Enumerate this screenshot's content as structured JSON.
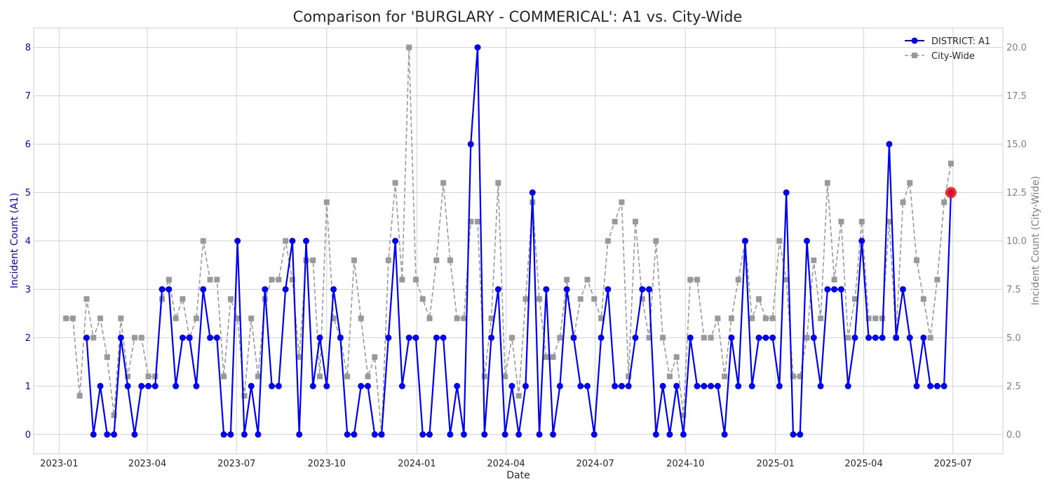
{
  "chart_data": {
    "type": "line",
    "title": "Comparison for 'BURGLARY - COMMERICAL': A1 vs. City-Wide",
    "xlabel": "Date",
    "ylabel_left": "Incident Count (A1)",
    "ylabel_right": "Incident Count (City-Wide)",
    "xlim": [
      "2022-12-06",
      "2025-08-21"
    ],
    "ylim_left": [
      -0.4,
      8.4
    ],
    "ylim_right": [
      -1.0,
      21.0
    ],
    "x_ticks": [
      "2023-01",
      "2023-04",
      "2023-07",
      "2023-10",
      "2024-01",
      "2024-04",
      "2024-07",
      "2024-10",
      "2025-01",
      "2025-04",
      "2025-07"
    ],
    "y_ticks_left": [
      "0",
      "1",
      "2",
      "3",
      "4",
      "5",
      "6",
      "7",
      "8"
    ],
    "y_ticks_right": [
      "0.0",
      "2.5",
      "5.0",
      "7.5",
      "10.0",
      "12.5",
      "15.0",
      "17.5",
      "20.0"
    ],
    "grid": true,
    "legend_position": "top-right",
    "colors": {
      "district": "#0000ee",
      "city": "#999999",
      "highlight": "#ee1111"
    },
    "x": [
      "2023-01-08",
      "2023-01-15",
      "2023-01-22",
      "2023-01-29",
      "2023-02-05",
      "2023-02-12",
      "2023-02-19",
      "2023-02-26",
      "2023-03-05",
      "2023-03-12",
      "2023-03-19",
      "2023-03-26",
      "2023-04-02",
      "2023-04-09",
      "2023-04-16",
      "2023-04-23",
      "2023-04-30",
      "2023-05-07",
      "2023-05-14",
      "2023-05-21",
      "2023-05-28",
      "2023-06-04",
      "2023-06-11",
      "2023-06-18",
      "2023-06-25",
      "2023-07-02",
      "2023-07-09",
      "2023-07-16",
      "2023-07-23",
      "2023-07-30",
      "2023-08-06",
      "2023-08-13",
      "2023-08-20",
      "2023-08-27",
      "2023-09-03",
      "2023-09-10",
      "2023-09-17",
      "2023-09-24",
      "2023-10-01",
      "2023-10-08",
      "2023-10-15",
      "2023-10-22",
      "2023-10-29",
      "2023-11-05",
      "2023-11-12",
      "2023-11-19",
      "2023-11-26",
      "2023-12-03",
      "2023-12-10",
      "2023-12-17",
      "2023-12-24",
      "2023-12-31",
      "2024-01-07",
      "2024-01-14",
      "2024-01-21",
      "2024-01-28",
      "2024-02-04",
      "2024-02-11",
      "2024-02-18",
      "2024-02-25",
      "2024-03-03",
      "2024-03-10",
      "2024-03-17",
      "2024-03-24",
      "2024-03-31",
      "2024-04-07",
      "2024-04-14",
      "2024-04-21",
      "2024-04-28",
      "2024-05-05",
      "2024-05-12",
      "2024-05-19",
      "2024-05-26",
      "2024-06-02",
      "2024-06-09",
      "2024-06-16",
      "2024-06-23",
      "2024-06-30",
      "2024-07-07",
      "2024-07-14",
      "2024-07-21",
      "2024-07-28",
      "2024-08-04",
      "2024-08-11",
      "2024-08-18",
      "2024-08-25",
      "2024-09-01",
      "2024-09-08",
      "2024-09-15",
      "2024-09-22",
      "2024-09-29",
      "2024-10-06",
      "2024-10-13",
      "2024-10-20",
      "2024-10-27",
      "2024-11-03",
      "2024-11-10",
      "2024-11-17",
      "2024-11-24",
      "2024-12-01",
      "2024-12-08",
      "2024-12-15",
      "2024-12-22",
      "2024-12-29",
      "2025-01-05",
      "2025-01-12",
      "2025-01-19",
      "2025-01-26",
      "2025-02-02",
      "2025-02-09",
      "2025-02-16",
      "2025-02-23",
      "2025-03-02",
      "2025-03-09",
      "2025-03-16",
      "2025-03-23",
      "2025-03-30",
      "2025-04-06",
      "2025-04-13",
      "2025-04-20",
      "2025-04-27",
      "2025-05-04",
      "2025-05-11",
      "2025-05-18",
      "2025-05-25",
      "2025-06-01",
      "2025-06-08",
      "2025-06-15",
      "2025-06-22",
      "2025-06-29"
    ],
    "series": [
      {
        "name": "DISTRICT: A1",
        "style": "solid line with circle markers",
        "values": [
          null,
          null,
          null,
          2,
          0,
          1,
          0,
          0,
          2,
          1,
          0,
          1,
          1,
          1,
          3,
          3,
          1,
          2,
          2,
          1,
          3,
          2,
          2,
          0,
          0,
          4,
          0,
          1,
          0,
          3,
          1,
          1,
          3,
          4,
          0,
          4,
          1,
          2,
          1,
          3,
          2,
          0,
          0,
          1,
          1,
          0,
          0,
          2,
          4,
          1,
          2,
          2,
          0,
          0,
          2,
          2,
          0,
          1,
          0,
          6,
          8,
          0,
          2,
          3,
          0,
          1,
          0,
          1,
          5,
          0,
          3,
          0,
          1,
          3,
          2,
          1,
          1,
          0,
          2,
          3,
          1,
          1,
          1,
          2,
          3,
          3,
          0,
          1,
          0,
          1,
          0,
          2,
          1,
          1,
          1,
          1,
          0,
          2,
          1,
          4,
          1,
          2,
          2,
          2,
          1,
          5,
          0,
          0,
          4,
          2,
          1,
          3,
          3,
          3,
          1,
          2,
          4,
          2,
          2,
          2,
          6,
          2,
          3,
          2,
          1,
          2,
          1,
          1,
          1,
          5
        ]
      },
      {
        "name": "City-Wide",
        "style": "dashed line with square markers",
        "values": [
          6,
          6,
          2,
          7,
          5,
          6,
          4,
          1,
          6,
          3,
          5,
          5,
          3,
          3,
          7,
          8,
          6,
          7,
          5,
          6,
          10,
          8,
          8,
          3,
          7,
          6,
          2,
          6,
          3,
          7,
          8,
          8,
          10,
          8,
          4,
          9,
          9,
          3,
          12,
          6,
          5,
          3,
          9,
          6,
          3,
          4,
          0,
          9,
          13,
          8,
          20,
          8,
          7,
          6,
          9,
          13,
          9,
          6,
          6,
          11,
          11,
          3,
          6,
          13,
          3,
          5,
          2,
          7,
          12,
          7,
          4,
          4,
          5,
          8,
          5,
          7,
          8,
          7,
          6,
          10,
          11,
          12,
          3,
          11,
          7,
          5,
          10,
          5,
          3,
          4,
          1,
          8,
          8,
          5,
          5,
          6,
          3,
          6,
          8,
          10,
          6,
          7,
          6,
          6,
          10,
          8,
          3,
          3,
          5,
          9,
          6,
          13,
          8,
          11,
          5,
          7,
          11,
          6,
          6,
          6,
          11,
          5,
          12,
          13,
          9,
          7,
          5,
          8,
          12,
          14
        ]
      }
    ],
    "highlight": {
      "x": "2025-06-29",
      "value": 5,
      "series": "DISTRICT: A1"
    }
  }
}
